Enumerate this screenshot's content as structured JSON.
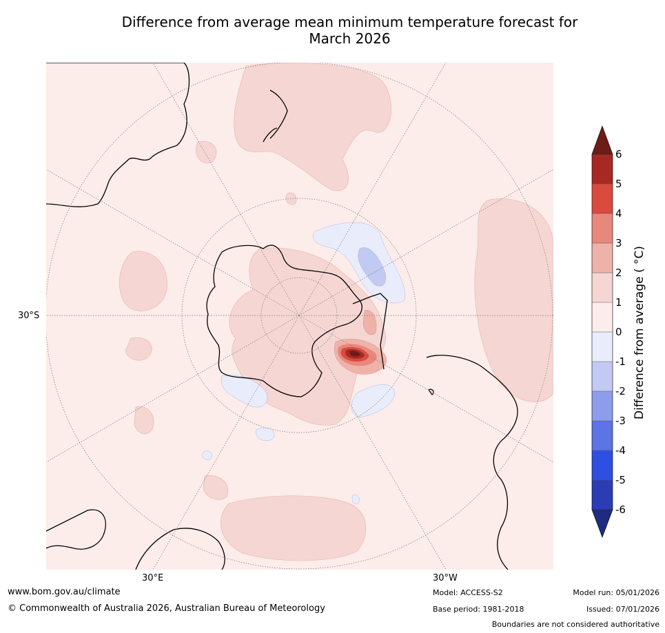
{
  "title_line1": "Difference from average mean minimum temperature forecast for",
  "title_line2": "March 2026",
  "map": {
    "lat_label": "30°S",
    "lon_label_left": "30°E",
    "lon_label_right": "30°W"
  },
  "colorbar": {
    "title": "Difference from average ( °C)",
    "ticks": [
      "6",
      "5",
      "4",
      "3",
      "2",
      "1",
      "0",
      "-1",
      "-2",
      "-3",
      "-4",
      "-5",
      "-6"
    ],
    "bands": [
      "#a62a23",
      "#d94a3f",
      "#e8877c",
      "#eeb2a9",
      "#f5d6d3",
      "#fcecea",
      "#e9edfb",
      "#c2c9f2",
      "#8e9cec",
      "#5c74e4",
      "#2f4fe0",
      "#2c3db4"
    ],
    "over_color": "#6e1c18",
    "under_color": "#1e2b80"
  },
  "footer": {
    "website": "www.bom.gov.au/climate",
    "copyright": "© Commonwealth of Australia 2026, Australian Bureau of Meteorology",
    "model": "Model: ACCESS-S2",
    "base_period": "Base period: 1981-2018",
    "model_run": "Model run: 05/01/2026",
    "issued": "Issued: 07/01/2026",
    "disclaimer": "Boundaries are not considered authoritative"
  }
}
